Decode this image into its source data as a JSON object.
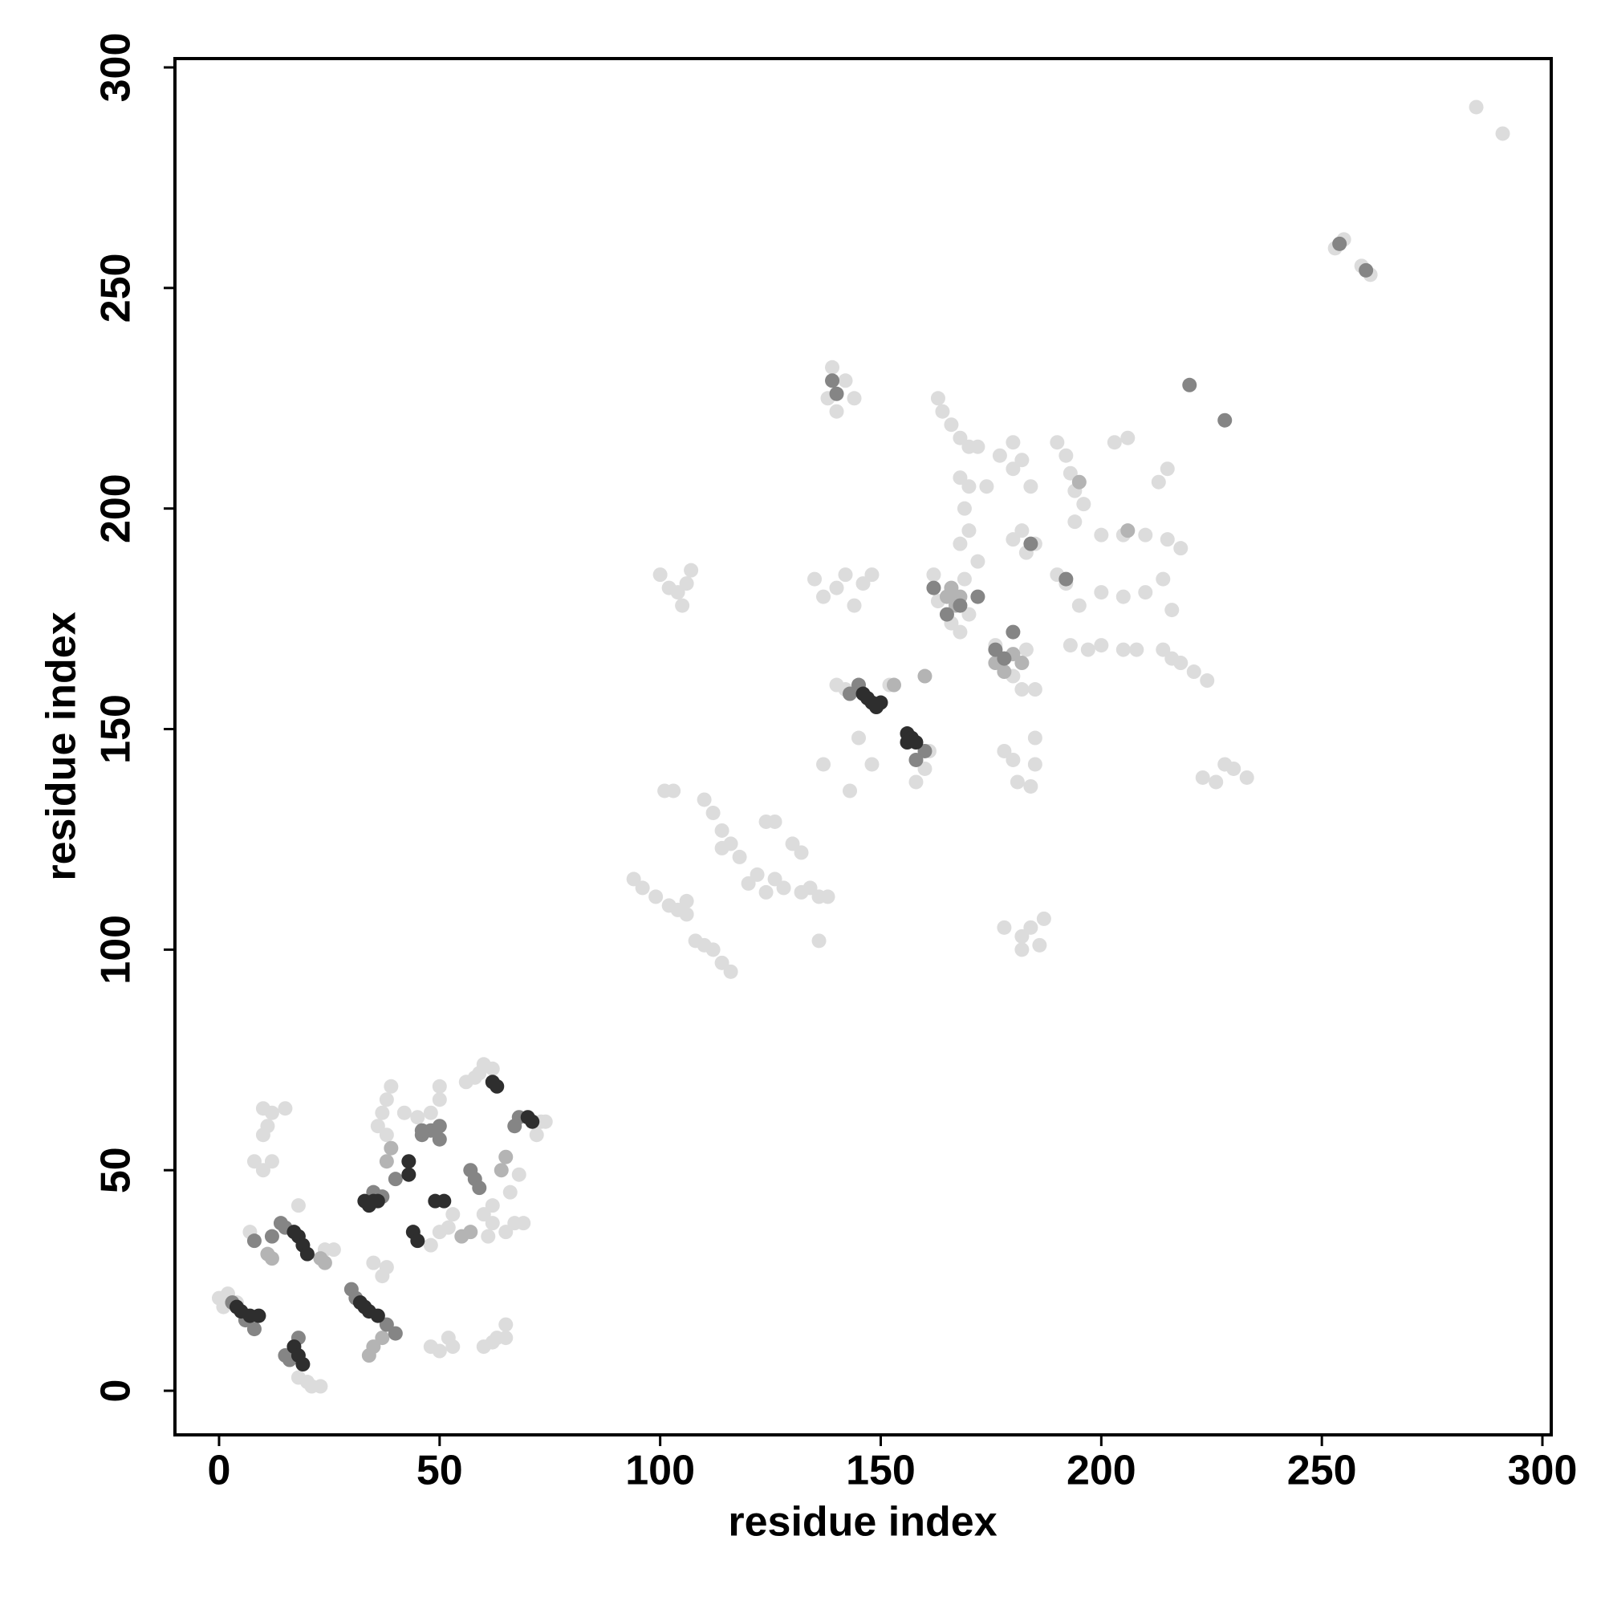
{
  "chart_data": {
    "type": "scatter",
    "xlabel": "residue index",
    "ylabel": "residue index",
    "xlim": [
      -10,
      302
    ],
    "ylim": [
      -10,
      302
    ],
    "xticks": [
      0,
      50,
      100,
      150,
      200,
      250,
      300
    ],
    "yticks": [
      0,
      50,
      100,
      150,
      200,
      250,
      300
    ],
    "series": [
      {
        "color": "#dcdcdc",
        "x": [
          285,
          291,
          253,
          255,
          261,
          259,
          138,
          139,
          140,
          142,
          144,
          163,
          164,
          166,
          168,
          170,
          172,
          168,
          170,
          169,
          170,
          168,
          172,
          174,
          177,
          180,
          180,
          182,
          184,
          180,
          182,
          183,
          185,
          190,
          192,
          193,
          194,
          196,
          194,
          203,
          206,
          213,
          215,
          200,
          205,
          210,
          215,
          218,
          200,
          205,
          210,
          214,
          216,
          193,
          197,
          200,
          205,
          208,
          214,
          216,
          218,
          221,
          224,
          135,
          137,
          140,
          142,
          144,
          146,
          148,
          100,
          102,
          104,
          107,
          106,
          105,
          162,
          163,
          166,
          168,
          170,
          169,
          190,
          192,
          195,
          176,
          183,
          185,
          180,
          182,
          178,
          180,
          181,
          185,
          185,
          184,
          223,
          226,
          228,
          230,
          233,
          137,
          143,
          145,
          148,
          140,
          142,
          152,
          158,
          160,
          161,
          94,
          96,
          99,
          102,
          104,
          106,
          108,
          110,
          112,
          114,
          116,
          106,
          110,
          112,
          114,
          116,
          118,
          114,
          120,
          122,
          124,
          126,
          128,
          132,
          134,
          136,
          138,
          124,
          126,
          130,
          132,
          101,
          103,
          136,
          178,
          182,
          184,
          186,
          187,
          182,
          60,
          62,
          63,
          65,
          65,
          48,
          50,
          52,
          53,
          10,
          12,
          15,
          11,
          10,
          8,
          10,
          12,
          37,
          38,
          39,
          36,
          38,
          42,
          45,
          48,
          50,
          50,
          56,
          58,
          59,
          60,
          62,
          61,
          62,
          65,
          67,
          69,
          72,
          73,
          74,
          60,
          62,
          66,
          68,
          48,
          50,
          52,
          53,
          2,
          4,
          0,
          1,
          18,
          18,
          20,
          21,
          23,
          24,
          26,
          7,
          35,
          38,
          37
        ],
        "y": [
          291,
          285,
          259,
          261,
          253,
          255,
          225,
          232,
          222,
          229,
          225,
          225,
          222,
          219,
          216,
          214,
          214,
          207,
          205,
          200,
          195,
          192,
          188,
          205,
          212,
          215,
          209,
          211,
          205,
          193,
          195,
          190,
          192,
          215,
          212,
          208,
          204,
          201,
          197,
          215,
          216,
          206,
          209,
          194,
          194,
          194,
          193,
          191,
          181,
          180,
          181,
          184,
          177,
          169,
          168,
          169,
          168,
          168,
          168,
          166,
          165,
          163,
          161,
          184,
          180,
          182,
          185,
          178,
          183,
          185,
          185,
          182,
          181,
          186,
          183,
          178,
          185,
          179,
          174,
          172,
          176,
          184,
          185,
          183,
          178,
          169,
          168,
          159,
          162,
          159,
          145,
          143,
          138,
          142,
          148,
          137,
          139,
          138,
          142,
          141,
          139,
          142,
          136,
          148,
          142,
          160,
          159,
          160,
          138,
          141,
          145,
          116,
          114,
          112,
          110,
          109,
          111,
          102,
          101,
          100,
          97,
          95,
          108,
          134,
          131,
          127,
          124,
          121,
          123,
          115,
          117,
          113,
          116,
          114,
          113,
          114,
          112,
          112,
          129,
          129,
          124,
          122,
          136,
          136,
          102,
          105,
          103,
          105,
          101,
          107,
          100,
          10,
          11,
          12,
          15,
          12,
          10,
          9,
          12,
          10,
          64,
          63,
          64,
          60,
          58,
          52,
          50,
          52,
          63,
          66,
          69,
          60,
          58,
          63,
          62,
          63,
          66,
          69,
          70,
          71,
          72,
          74,
          73,
          35,
          38,
          36,
          38,
          38,
          58,
          61,
          61,
          40,
          42,
          45,
          49,
          33,
          36,
          37,
          40,
          22,
          20,
          21,
          19,
          42,
          3,
          2,
          1,
          1,
          32,
          32,
          36,
          29,
          28,
          26
        ]
      },
      {
        "color": "#b4b4b4",
        "x": [
          176,
          178,
          180,
          182,
          167,
          165,
          166,
          168,
          160,
          153,
          23,
          24,
          34,
          35,
          37,
          11,
          12,
          55,
          57,
          64,
          65,
          38,
          39,
          195,
          206
        ],
        "y": [
          165,
          163,
          167,
          165,
          178,
          180,
          182,
          180,
          162,
          160,
          30,
          29,
          8,
          10,
          12,
          31,
          30,
          35,
          36,
          50,
          53,
          52,
          55,
          206,
          195
        ]
      },
      {
        "color": "#858585",
        "x": [
          220,
          228,
          180,
          172,
          192,
          184,
          57,
          58,
          59,
          50,
          48,
          46,
          35,
          37,
          40,
          46,
          50,
          14,
          15,
          8,
          12,
          3,
          6,
          8,
          15,
          16,
          18,
          30,
          31,
          38,
          40,
          162,
          165,
          168,
          176,
          178,
          139,
          140,
          254,
          260,
          145,
          143,
          160,
          158,
          68,
          67
        ],
        "y": [
          228,
          220,
          172,
          180,
          184,
          192,
          50,
          48,
          46,
          57,
          59,
          58,
          45,
          44,
          48,
          59,
          60,
          38,
          37,
          34,
          35,
          20,
          16,
          14,
          8,
          7,
          12,
          23,
          21,
          15,
          13,
          182,
          176,
          178,
          168,
          166,
          229,
          226,
          260,
          254,
          160,
          158,
          145,
          143,
          62,
          60
        ]
      },
      {
        "color": "#2e2e2e",
        "x": [
          148,
          149,
          150,
          147,
          146,
          156,
          157,
          158,
          156,
          33,
          34,
          35,
          36,
          49,
          51,
          43,
          43,
          7,
          9,
          5,
          4,
          17,
          18,
          19,
          20,
          32,
          33,
          34,
          36,
          17,
          18,
          19,
          44,
          45,
          62,
          63,
          70,
          71
        ],
        "y": [
          156,
          155,
          156,
          157,
          158,
          149,
          148,
          147,
          147,
          43,
          42,
          43,
          43,
          43,
          43,
          52,
          49,
          17,
          17,
          18,
          19,
          36,
          35,
          33,
          31,
          20,
          19,
          18,
          17,
          10,
          8,
          6,
          36,
          34,
          70,
          69,
          62,
          61
        ]
      }
    ]
  }
}
